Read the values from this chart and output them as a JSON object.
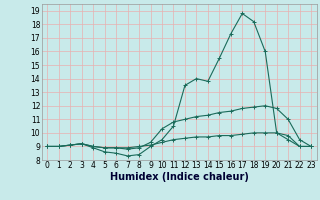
{
  "xlabel": "Humidex (Indice chaleur)",
  "x": [
    0,
    1,
    2,
    3,
    4,
    5,
    6,
    7,
    8,
    9,
    10,
    11,
    12,
    13,
    14,
    15,
    16,
    17,
    18,
    19,
    20,
    21,
    22,
    23
  ],
  "y_main": [
    9.0,
    9.0,
    9.1,
    9.2,
    8.9,
    8.6,
    8.5,
    8.3,
    8.4,
    9.0,
    9.5,
    10.5,
    13.5,
    14.0,
    13.8,
    15.5,
    17.3,
    18.8,
    18.2,
    16.0,
    10.0,
    9.5,
    9.0,
    9.0
  ],
  "y_mid": [
    9.0,
    9.0,
    9.1,
    9.2,
    9.0,
    8.9,
    8.9,
    8.8,
    8.9,
    9.3,
    10.3,
    10.8,
    11.0,
    11.2,
    11.3,
    11.5,
    11.6,
    11.8,
    11.9,
    12.0,
    11.8,
    11.0,
    9.5,
    9.0
  ],
  "y_low": [
    9.0,
    9.0,
    9.1,
    9.2,
    9.0,
    8.9,
    8.9,
    8.9,
    9.0,
    9.1,
    9.3,
    9.5,
    9.6,
    9.7,
    9.7,
    9.8,
    9.8,
    9.9,
    10.0,
    10.0,
    10.0,
    9.8,
    9.0,
    9.0
  ],
  "line_color": "#1a6b5a",
  "bg_color": "#c8eaea",
  "grid_color": "#e8b0b0",
  "xlim": [
    -0.5,
    23.5
  ],
  "ylim": [
    8.0,
    19.5
  ],
  "yticks": [
    8,
    9,
    10,
    11,
    12,
    13,
    14,
    15,
    16,
    17,
    18,
    19
  ],
  "xticks": [
    0,
    1,
    2,
    3,
    4,
    5,
    6,
    7,
    8,
    9,
    10,
    11,
    12,
    13,
    14,
    15,
    16,
    17,
    18,
    19,
    20,
    21,
    22,
    23
  ],
  "tick_fontsize": 5.5,
  "xlabel_fontsize": 7.0,
  "lw": 0.8,
  "marker_size": 2.0
}
